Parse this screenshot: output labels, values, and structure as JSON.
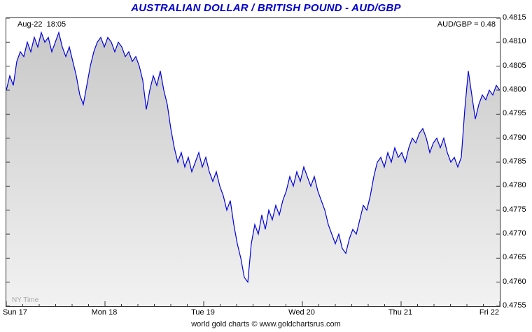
{
  "title": "AUSTRALIAN DOLLAR / BRITISH POUND - AUD/GBP",
  "annotations": {
    "timestamp": "Aug-22  18:05",
    "quote": "AUD/GBP = 0.48",
    "timezone": "NY Time"
  },
  "footer": "world gold charts © www.goldchartsrus.com",
  "colors": {
    "title": "#0000cc",
    "line": "#0000dd",
    "fill_top": "#c9c9c9",
    "fill_bottom": "#f2f2f2",
    "axis": "#333333",
    "timezone_text": "#aaaaaa"
  },
  "chart_data": {
    "type": "area",
    "title": "AUSTRALIAN DOLLAR / BRITISH POUND - AUD/GBP",
    "xlabel": "",
    "ylabel": "",
    "x_tick_labels": [
      "Sun 17",
      "Mon 18",
      "Tue 19",
      "Wed 20",
      "Thu 21",
      "Fri 22"
    ],
    "y_tick_labels": [
      "0.4815",
      "0.4810",
      "0.4805",
      "0.4800",
      "0.4795",
      "0.4790",
      "0.4785",
      "0.4780",
      "0.4775",
      "0.4770",
      "0.4765",
      "0.4760",
      "0.4755"
    ],
    "ylim": [
      0.4755,
      0.4815
    ],
    "grid": false,
    "legend": "none",
    "last_price": 0.48,
    "values": [
      0.48,
      0.4803,
      0.4801,
      0.4806,
      0.4808,
      0.4807,
      0.481,
      0.4808,
      0.4811,
      0.4809,
      0.4812,
      0.481,
      0.4811,
      0.4808,
      0.481,
      0.4812,
      0.4809,
      0.4807,
      0.4809,
      0.4806,
      0.4803,
      0.4799,
      0.4797,
      0.4801,
      0.4805,
      0.4808,
      0.481,
      0.4811,
      0.4809,
      0.4811,
      0.481,
      0.4808,
      0.481,
      0.4809,
      0.4807,
      0.4808,
      0.4806,
      0.4807,
      0.4805,
      0.4802,
      0.4796,
      0.48,
      0.4803,
      0.4801,
      0.4804,
      0.48,
      0.4797,
      0.4792,
      0.4788,
      0.4785,
      0.4787,
      0.4784,
      0.4786,
      0.4783,
      0.4785,
      0.4787,
      0.4784,
      0.4786,
      0.4783,
      0.4781,
      0.4783,
      0.478,
      0.4778,
      0.4775,
      0.4777,
      0.4772,
      0.4768,
      0.4765,
      0.4761,
      0.476,
      0.4768,
      0.4772,
      0.477,
      0.4774,
      0.4771,
      0.4775,
      0.4773,
      0.4776,
      0.4774,
      0.4777,
      0.4779,
      0.4782,
      0.478,
      0.4783,
      0.4781,
      0.4784,
      0.4782,
      0.478,
      0.4782,
      0.4779,
      0.4777,
      0.4775,
      0.4772,
      0.477,
      0.4768,
      0.477,
      0.4767,
      0.4766,
      0.4769,
      0.4771,
      0.477,
      0.4773,
      0.4776,
      0.4775,
      0.4778,
      0.4782,
      0.4785,
      0.4786,
      0.4784,
      0.4787,
      0.4785,
      0.4788,
      0.4786,
      0.4787,
      0.4785,
      0.4788,
      0.479,
      0.4789,
      0.4791,
      0.4792,
      0.479,
      0.4787,
      0.4789,
      0.479,
      0.4788,
      0.479,
      0.4787,
      0.4785,
      0.4786,
      0.4784,
      0.4786,
      0.4796,
      0.4804,
      0.4799,
      0.4794,
      0.4797,
      0.4799,
      0.4798,
      0.48,
      0.4799,
      0.4801,
      0.48
    ]
  }
}
